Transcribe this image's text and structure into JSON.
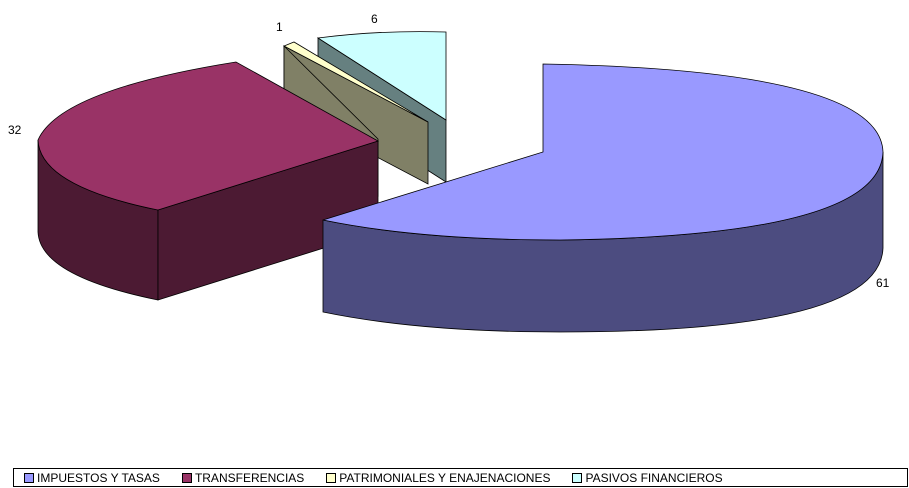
{
  "chart_data": {
    "type": "pie",
    "style": "3d-exploded",
    "categories": [
      "IMPUESTOS Y TASAS",
      "TRANSFERENCIAS",
      "PATRIMONIALES Y ENAJENACIONES",
      "PASIVOS FINANCIEROS"
    ],
    "values": [
      61,
      32,
      1,
      6
    ],
    "data_labels": [
      "61",
      "32",
      "1",
      "6"
    ],
    "colors": [
      "#9999ff",
      "#993366",
      "#ffffcc",
      "#ccffff"
    ],
    "legend_position": "bottom"
  }
}
